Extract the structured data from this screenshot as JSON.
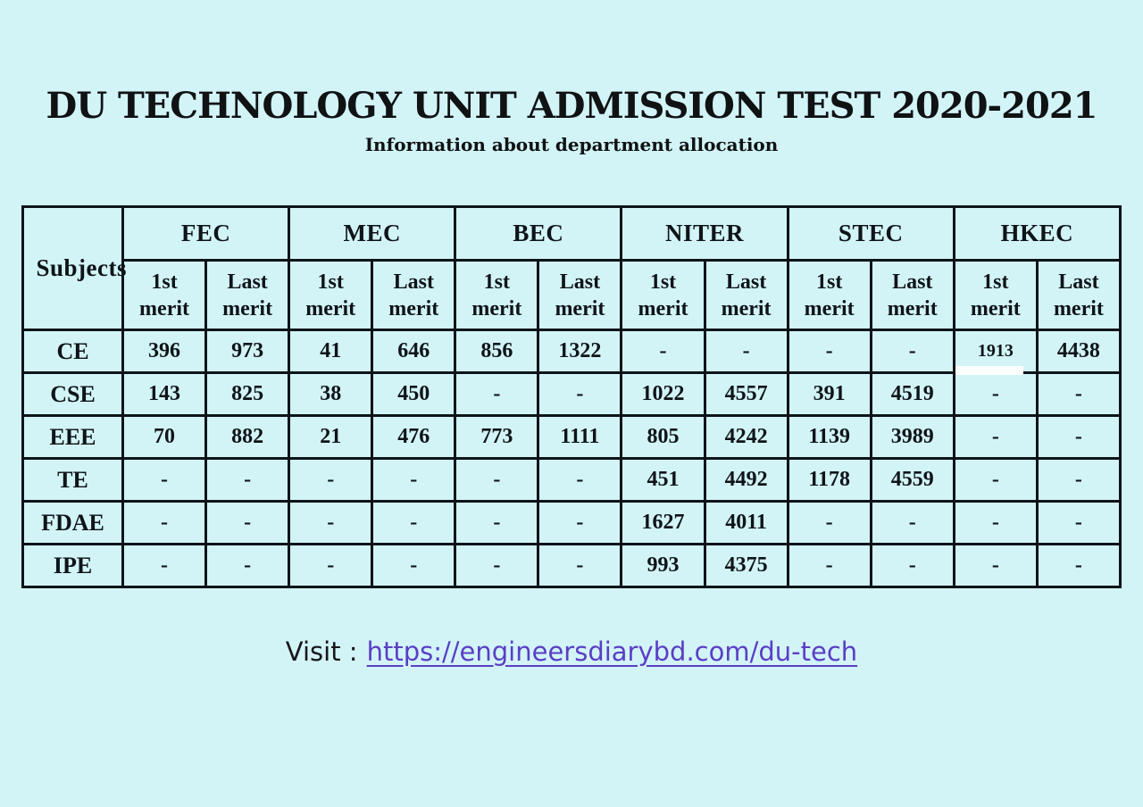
{
  "page": {
    "background_color": "#d2f4f7",
    "border_color": "#0d1418",
    "title": "DU TECHNOLOGY UNIT ADMISSION TEST 2020-2021",
    "subtitle": "Information about department allocation"
  },
  "table": {
    "subject_header": "Subjects",
    "groups": [
      "FEC",
      "MEC",
      "BEC",
      "NITER",
      "STEC",
      "HKEC"
    ],
    "subheaders": [
      "1st merit",
      "Last merit"
    ],
    "rows": [
      {
        "subject": "CE",
        "values": [
          "396",
          "973",
          "41",
          "646",
          "856",
          "1322",
          "-",
          "-",
          "-",
          "-",
          "1913",
          "4438"
        ]
      },
      {
        "subject": "CSE",
        "values": [
          "143",
          "825",
          "38",
          "450",
          "-",
          "-",
          "1022",
          "4557",
          "391",
          "4519",
          "-",
          "-"
        ]
      },
      {
        "subject": "EEE",
        "values": [
          "70",
          "882",
          "21",
          "476",
          "773",
          "1111",
          "805",
          "4242",
          "1139",
          "3989",
          "-",
          "-"
        ]
      },
      {
        "subject": "TE",
        "values": [
          "-",
          "-",
          "-",
          "-",
          "-",
          "-",
          "451",
          "4492",
          "1178",
          "4559",
          "-",
          "-"
        ]
      },
      {
        "subject": "FDAE",
        "values": [
          "-",
          "-",
          "-",
          "-",
          "-",
          "-",
          "1627",
          "4011",
          "-",
          "-",
          "-",
          "-"
        ]
      },
      {
        "subject": "IPE",
        "values": [
          "-",
          "-",
          "-",
          "-",
          "-",
          "-",
          "993",
          "4375",
          "-",
          "-",
          "-",
          "-"
        ]
      }
    ]
  },
  "footer": {
    "visit_label": "Visit :",
    "link_text": "https://engineersdiarybd.com/du-tech",
    "link_color": "#5a3ec5"
  }
}
